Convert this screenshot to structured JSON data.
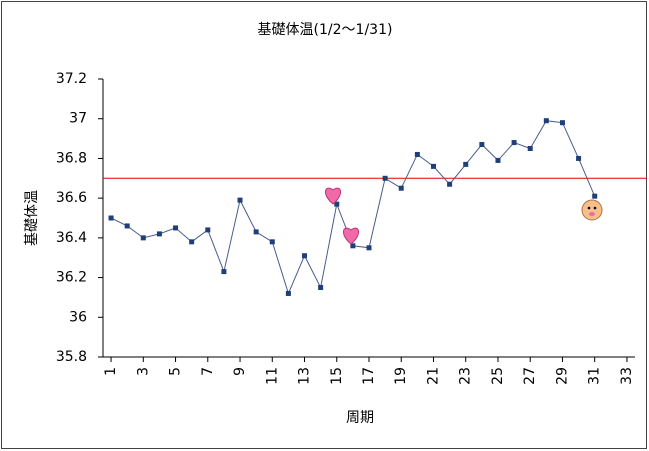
{
  "chart_data": {
    "type": "line",
    "title": "基礎体温(1/2〜1/31)",
    "x_label": "周期",
    "y_label": "基礎体温",
    "x": [
      1,
      2,
      3,
      4,
      5,
      6,
      7,
      8,
      9,
      10,
      11,
      12,
      13,
      14,
      15,
      16,
      17,
      18,
      19,
      20,
      21,
      22,
      23,
      24,
      25,
      26,
      27,
      28,
      29,
      30,
      31
    ],
    "values": [
      36.5,
      36.46,
      36.4,
      36.42,
      36.45,
      36.38,
      36.44,
      36.23,
      36.59,
      36.43,
      36.38,
      36.12,
      36.31,
      36.15,
      36.57,
      36.36,
      36.35,
      36.7,
      36.65,
      36.82,
      36.76,
      36.67,
      36.77,
      36.87,
      36.79,
      36.88,
      36.85,
      36.99,
      36.98,
      36.8,
      36.61
    ],
    "color": "#1f3f7a",
    "xlim": [
      0.5,
      33.5
    ],
    "xticks": [
      1,
      3,
      5,
      7,
      9,
      11,
      13,
      15,
      17,
      19,
      21,
      23,
      25,
      27,
      29,
      31,
      33
    ],
    "ylim": [
      35.8,
      37.2
    ],
    "yticks": [
      37.2,
      37,
      36.8,
      36.6,
      36.4,
      36.2,
      36,
      35.8
    ],
    "reference_line": {
      "value": 36.7,
      "color": "#e00000"
    }
  }
}
